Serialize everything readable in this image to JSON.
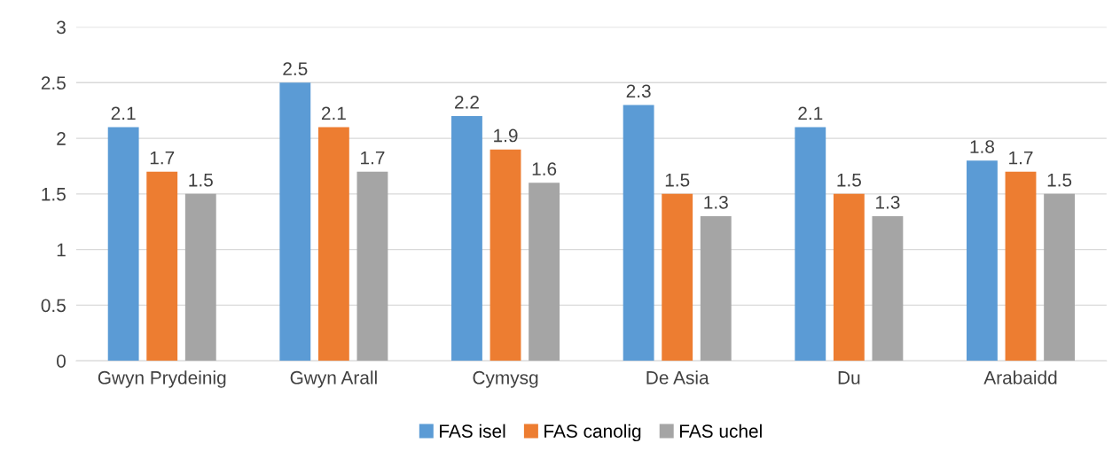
{
  "chart_data": {
    "type": "bar",
    "categories": [
      "Gwyn Prydeinig",
      "Gwyn Arall",
      "Cymysg",
      "De Asia",
      "Du",
      "Arabaidd"
    ],
    "series": [
      {
        "name": "FAS isel",
        "color": "#5b9bd5",
        "values": [
          2.1,
          2.5,
          2.2,
          2.3,
          2.1,
          1.8
        ]
      },
      {
        "name": "FAS canolig",
        "color": "#ed7d31",
        "values": [
          1.7,
          2.1,
          1.9,
          1.5,
          1.5,
          1.7
        ]
      },
      {
        "name": "FAS uchel",
        "color": "#a5a5a5",
        "values": [
          1.5,
          1.7,
          1.6,
          1.3,
          1.3,
          1.5
        ]
      }
    ],
    "ylim": [
      0,
      3
    ],
    "yticks": [
      0,
      0.5,
      1,
      1.5,
      2,
      2.5,
      3
    ],
    "grid": "y",
    "legend": "bottom",
    "data_labels": true
  }
}
